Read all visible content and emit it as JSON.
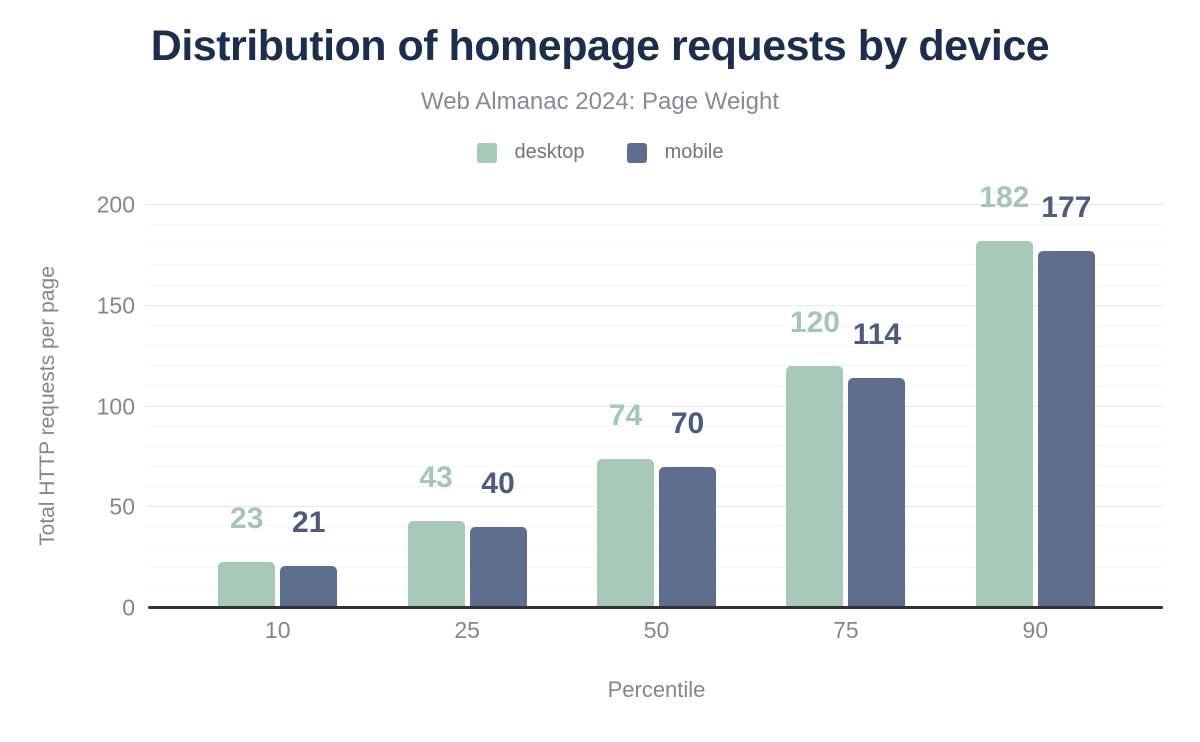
{
  "chart_data": {
    "type": "bar",
    "title": "Distribution of homepage requests by device",
    "subtitle": "Web Almanac 2024: Page Weight",
    "categories": [
      "10",
      "25",
      "50",
      "75",
      "90"
    ],
    "series": [
      {
        "name": "desktop",
        "color": "#a6c9b8",
        "label_color": "#a4c7b4",
        "values": [
          23,
          43,
          74,
          120,
          182
        ]
      },
      {
        "name": "mobile",
        "color": "#5e6f8d",
        "label_color": "#4d5c7e",
        "values": [
          21,
          40,
          70,
          114,
          177
        ]
      }
    ],
    "xlabel": "Percentile",
    "ylabel": "Total HTTP requests per page",
    "ylim": [
      0,
      200
    ],
    "yticks": [
      0,
      50,
      100,
      150,
      200
    ],
    "minor_gridline_step": 10,
    "grid": true,
    "legend_position": "top",
    "value_labels": true
  },
  "colors": {
    "title": "#1c2e50",
    "subtitle": "#858b94",
    "axis_text": "#82878f",
    "legend_text": "#6f7680",
    "axis_line": "#2e3135",
    "major_gridline": "#e8e8e8",
    "minor_gridline": "#f6f6f6",
    "background": "#ffffff"
  }
}
